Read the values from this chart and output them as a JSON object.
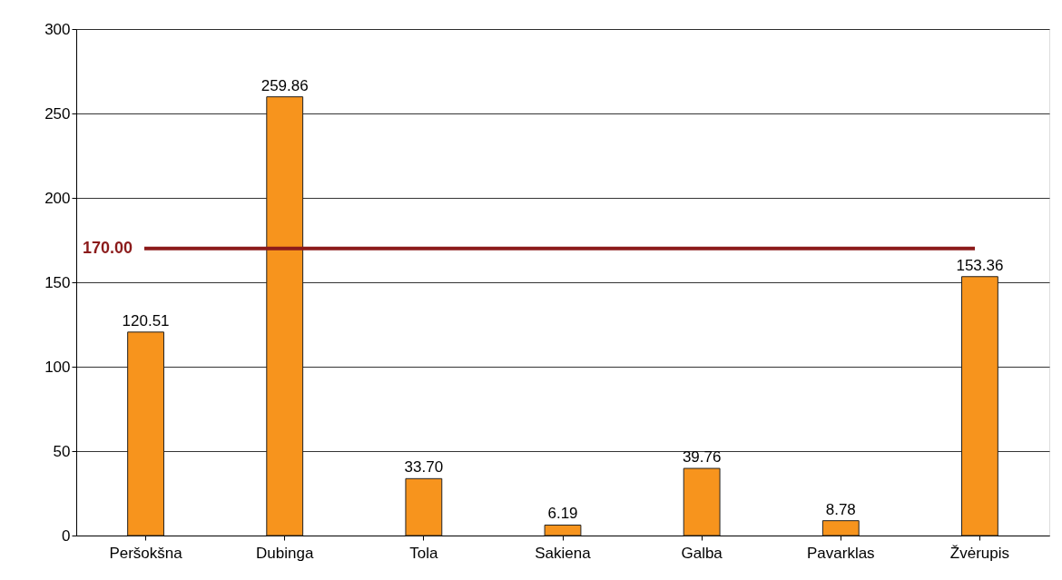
{
  "chart_data": {
    "type": "bar",
    "categories": [
      "Peršokšna",
      "Dubinga",
      "Tola",
      "Sakiena",
      "Galba",
      "Pavarklas",
      "Žvėrupis"
    ],
    "values": [
      120.51,
      259.86,
      33.7,
      6.19,
      39.76,
      8.78,
      153.36
    ],
    "value_labels": [
      "120.51",
      "259.86",
      "33.70",
      "6.19",
      "39.76",
      "8.78",
      "153.36"
    ],
    "color": "#f7941d",
    "ylim": [
      0,
      300
    ],
    "yticks": [
      0,
      50,
      100,
      150,
      200,
      250,
      300
    ],
    "grid": "y",
    "ref_lines": [
      {
        "axis": "y",
        "value": 170,
        "label": "170.00",
        "color": "#8b1a1a"
      }
    ]
  }
}
